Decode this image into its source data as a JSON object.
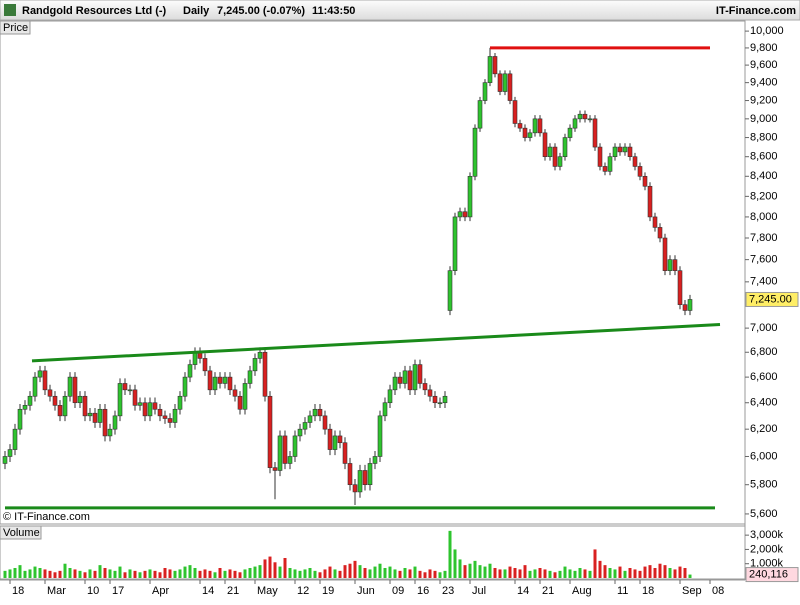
{
  "chart_data": [
    {
      "type": "candlestick",
      "title": "Randgold Resources Ltd (-)",
      "interval": "Daily",
      "last_quote": "7,245.00 (-0.07%)",
      "time": "11:43:50",
      "source": "IT-Finance.com",
      "panel_label": "Price",
      "copyright": "© IT-Finance.com",
      "log_scale": true,
      "xlim": [
        -1,
        148
      ],
      "ylim": [
        5546,
        10110
      ],
      "yticks": [
        {
          "value": 5600,
          "label": "5,600"
        },
        {
          "value": 5800,
          "label": "5,800"
        },
        {
          "value": 6000,
          "label": "6,000"
        },
        {
          "value": 6200,
          "label": "6,200"
        },
        {
          "value": 6400,
          "label": "6,400"
        },
        {
          "value": 6600,
          "label": "6,600"
        },
        {
          "value": 6800,
          "label": "6,800"
        },
        {
          "value": 7000,
          "label": "7,000"
        },
        {
          "value": 7400,
          "label": "7,400"
        },
        {
          "value": 7600,
          "label": "7,600"
        },
        {
          "value": 7800,
          "label": "7,800"
        },
        {
          "value": 8000,
          "label": "8,000"
        },
        {
          "value": 8200,
          "label": "8,200"
        },
        {
          "value": 8400,
          "label": "8,400"
        },
        {
          "value": 8600,
          "label": "8,600"
        },
        {
          "value": 8800,
          "label": "8,800"
        },
        {
          "value": 9000,
          "label": "9,000"
        },
        {
          "value": 9200,
          "label": "9,200"
        },
        {
          "value": 9400,
          "label": "9,400"
        },
        {
          "value": 9600,
          "label": "9,600"
        },
        {
          "value": 9800,
          "label": "9,800"
        },
        {
          "value": 10000,
          "label": "10,000"
        }
      ],
      "up_color": "#2ec42e",
      "down_color": "#d92020",
      "series": [
        {
          "open": [
            5950,
            6000,
            6050,
            6200,
            6350,
            6380,
            6450,
            6600,
            6650,
            6500,
            6450,
            6380,
            6300,
            6450,
            6600,
            6400,
            6450,
            6300,
            6320,
            6250,
            6350,
            6150,
            6200,
            6300,
            6550,
            6500,
            6500,
            6380,
            6400,
            6300,
            6400,
            6350,
            6300,
            6280,
            6250,
            6350,
            6450,
            6600,
            6700,
            6800,
            6750,
            6650,
            6500,
            6600,
            6550,
            6600,
            6500,
            6450,
            6350,
            6550,
            6650,
            6750,
            6800,
            6450,
            5920,
            5900,
            6150,
            5950,
            6000,
            6150,
            6200,
            6250,
            6300,
            6350,
            6300,
            6200,
            6050,
            6150,
            6100,
            5950,
            5800,
            5750,
            5900,
            5800,
            5950,
            6000,
            6300,
            6400,
            6500,
            6600,
            6550,
            6650,
            6500,
            6700,
            6550,
            6500,
            6450,
            6400,
            6400,
            7150,
            7500,
            8000,
            8050,
            8000,
            8400,
            8900,
            9200,
            9400,
            9700,
            9500,
            9300,
            9500,
            9200,
            8950,
            8900,
            8800,
            8850,
            9000,
            8850,
            8600,
            8700,
            8500,
            8600,
            8800,
            8900,
            9000,
            9050,
            9000,
            9000,
            8700,
            8500,
            8450,
            8600,
            8700,
            8650,
            8700,
            8600,
            8500,
            8400,
            8300,
            8000,
            7900,
            7800,
            7500,
            7600,
            7500,
            7200,
            7150
          ],
          "high": [
            6040,
            6090,
            6240,
            6390,
            6420,
            6490,
            6640,
            6690,
            6690,
            6540,
            6490,
            6420,
            6490,
            6640,
            6640,
            6490,
            6490,
            6360,
            6360,
            6390,
            6390,
            6240,
            6340,
            6590,
            6590,
            6540,
            6540,
            6440,
            6440,
            6440,
            6440,
            6390,
            6340,
            6320,
            6390,
            6490,
            6640,
            6740,
            6840,
            6840,
            6790,
            6690,
            6640,
            6640,
            6640,
            6640,
            6540,
            6490,
            6590,
            6690,
            6790,
            6840,
            6840,
            6490,
            5960,
            6190,
            6190,
            6040,
            6190,
            6240,
            6290,
            6340,
            6390,
            6390,
            6340,
            6240,
            6190,
            6190,
            6140,
            5990,
            5840,
            5940,
            5940,
            5990,
            6040,
            6340,
            6440,
            6540,
            6640,
            6640,
            6690,
            6690,
            6740,
            6740,
            6590,
            6540,
            6490,
            6440,
            6490,
            7540,
            8040,
            8090,
            8090,
            8440,
            8940,
            9240,
            9440,
            9800,
            9740,
            9540,
            9540,
            9540,
            9240,
            8990,
            8940,
            8890,
            9040,
            9040,
            8890,
            8740,
            8740,
            8640,
            8840,
            8940,
            9040,
            9090,
            9090,
            9040,
            9040,
            8740,
            8540,
            8640,
            8740,
            8740,
            8740,
            8740,
            8640,
            8540,
            8440,
            8340,
            8040,
            7940,
            7840,
            7640,
            7640,
            7540,
            7240,
            7285
          ],
          "low": [
            5910,
            5960,
            6010,
            6160,
            6310,
            6340,
            6410,
            6560,
            6460,
            6410,
            6340,
            6260,
            6260,
            6410,
            6360,
            6360,
            6260,
            6260,
            6210,
            6210,
            6110,
            6110,
            6160,
            6260,
            6460,
            6460,
            6340,
            6340,
            6260,
            6260,
            6310,
            6260,
            6240,
            6210,
            6210,
            6310,
            6410,
            6560,
            6660,
            6710,
            6610,
            6460,
            6460,
            6510,
            6510,
            6460,
            6410,
            6310,
            6310,
            6510,
            6610,
            6710,
            6410,
            5880,
            5700,
            5860,
            5910,
            5910,
            5960,
            6110,
            6160,
            6210,
            6260,
            6260,
            6160,
            6010,
            6010,
            6060,
            5910,
            5760,
            5660,
            5710,
            5760,
            5760,
            5910,
            5960,
            6260,
            6360,
            6460,
            6510,
            6510,
            6460,
            6460,
            6510,
            6460,
            6410,
            6360,
            6360,
            6360,
            7110,
            7460,
            7960,
            7960,
            7960,
            8360,
            8860,
            9160,
            9360,
            9460,
            9260,
            9260,
            9160,
            8910,
            8860,
            8760,
            8760,
            8810,
            8810,
            8560,
            8560,
            8460,
            8460,
            8560,
            8760,
            8860,
            8960,
            8960,
            8960,
            8660,
            8460,
            8410,
            8410,
            8560,
            8610,
            8610,
            8560,
            8460,
            8360,
            8260,
            7960,
            7860,
            7760,
            7460,
            7460,
            7460,
            7160,
            7110,
            7110
          ],
          "close": [
            6000,
            6050,
            6200,
            6350,
            6380,
            6450,
            6600,
            6650,
            6500,
            6450,
            6380,
            6300,
            6450,
            6600,
            6400,
            6450,
            6300,
            6320,
            6250,
            6350,
            6150,
            6200,
            6300,
            6550,
            6500,
            6500,
            6380,
            6400,
            6300,
            6400,
            6350,
            6300,
            6280,
            6250,
            6350,
            6450,
            6600,
            6700,
            6800,
            6750,
            6650,
            6500,
            6600,
            6550,
            6600,
            6500,
            6450,
            6350,
            6550,
            6650,
            6750,
            6800,
            6450,
            5920,
            5900,
            6150,
            5950,
            6000,
            6150,
            6200,
            6250,
            6300,
            6350,
            6300,
            6200,
            6050,
            6150,
            6100,
            5950,
            5800,
            5750,
            5900,
            5800,
            5950,
            6000,
            6300,
            6400,
            6500,
            6600,
            6550,
            6650,
            6500,
            6700,
            6550,
            6500,
            6450,
            6400,
            6400,
            6450,
            7500,
            8000,
            8050,
            8000,
            8400,
            8900,
            9200,
            9400,
            9700,
            9500,
            9300,
            9500,
            9200,
            8950,
            8900,
            8800,
            8850,
            9000,
            8850,
            8600,
            8700,
            8500,
            8600,
            8800,
            8900,
            9000,
            9050,
            9000,
            9000,
            8700,
            8500,
            8450,
            8600,
            8700,
            8650,
            8700,
            8600,
            8500,
            8400,
            8300,
            8000,
            7900,
            7800,
            7500,
            7600,
            7500,
            7200,
            7150,
            7245
          ]
        }
      ],
      "last_value": {
        "value": 7245,
        "label": "7,245.00"
      },
      "trend_lines": [
        {
          "color": "#e01010",
          "x": [
            97,
            141
          ],
          "values": [
            9800,
            9800
          ]
        },
        {
          "color": "#1a8a1a",
          "x": [
            5.4,
            143
          ],
          "values": [
            6730,
            7030
          ]
        },
        {
          "color": "#1a8a1a",
          "x": [
            0,
            142
          ],
          "values": [
            5641,
            5641
          ]
        }
      ]
    },
    {
      "type": "bar",
      "panel_label": "Volume",
      "xlim": [
        -1,
        148
      ],
      "ylim": [
        0,
        3500
      ],
      "yticks": [
        {
          "value": 1000,
          "label": "1,000k"
        },
        {
          "value": 2000,
          "label": "2,000k"
        },
        {
          "value": 3000,
          "label": "3,000k"
        }
      ],
      "xticks": [
        {
          "value": 1,
          "label": "18"
        },
        {
          "value": 8,
          "label": "Mar"
        },
        {
          "value": 16,
          "label": "10"
        },
        {
          "value": 21,
          "label": "17"
        },
        {
          "value": 29,
          "label": "Apr"
        },
        {
          "value": 39,
          "label": "14"
        },
        {
          "value": 44,
          "label": "21"
        },
        {
          "value": 50,
          "label": "May"
        },
        {
          "value": 58,
          "label": "12"
        },
        {
          "value": 63,
          "label": "19"
        },
        {
          "value": 70,
          "label": "Jun"
        },
        {
          "value": 77,
          "label": "09"
        },
        {
          "value": 82,
          "label": "16"
        },
        {
          "value": 87,
          "label": "23"
        },
        {
          "value": 93,
          "label": "Jul"
        },
        {
          "value": 102,
          "label": "14"
        },
        {
          "value": 107,
          "label": "21"
        },
        {
          "value": 113,
          "label": "Aug"
        },
        {
          "value": 122,
          "label": "11"
        },
        {
          "value": 127,
          "label": "18"
        },
        {
          "value": 135,
          "label": "Sep"
        },
        {
          "value": 141,
          "label": "08"
        }
      ],
      "values": [
        500,
        600,
        700,
        900,
        500,
        600,
        800,
        700,
        600,
        500,
        400,
        500,
        1000,
        700,
        600,
        500,
        400,
        600,
        500,
        900,
        700,
        600,
        500,
        800,
        400,
        600,
        500,
        400,
        500,
        600,
        500,
        400,
        700,
        600,
        500,
        600,
        800,
        900,
        700,
        500,
        600,
        500,
        400,
        700,
        500,
        600,
        500,
        400,
        600,
        700,
        800,
        900,
        1300,
        1500,
        1100,
        800,
        1400,
        700,
        600,
        500,
        600,
        700,
        500,
        400,
        600,
        800,
        600,
        500,
        900,
        1000,
        1200,
        900,
        700,
        600,
        800,
        1000,
        700,
        800,
        600,
        500,
        700,
        600,
        800,
        500,
        400,
        600,
        500,
        400,
        500,
        3300,
        2000,
        1300,
        900,
        1000,
        1200,
        900,
        800,
        1000,
        700,
        600,
        600,
        800,
        700,
        600,
        900,
        500,
        600,
        700,
        600,
        500,
        400,
        500,
        800,
        600,
        500,
        700,
        600,
        500,
        2000,
        1200,
        900,
        700,
        600,
        800,
        500,
        700,
        600,
        500,
        800,
        900,
        700,
        1000,
        900,
        700,
        600,
        800,
        700,
        240.116
      ],
      "last_value": {
        "value": 240.116,
        "label": "240,116"
      }
    }
  ]
}
